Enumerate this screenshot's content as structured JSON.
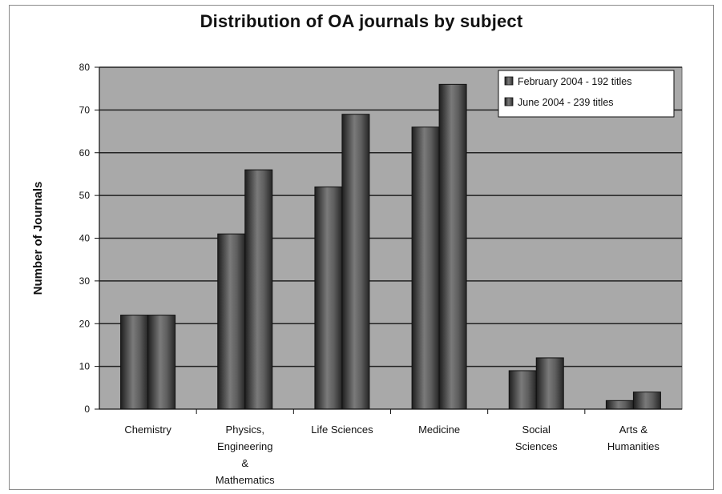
{
  "chart_data": {
    "type": "bar",
    "title": "Distribution of OA journals by subject",
    "xlabel": "",
    "ylabel": "Number of Journals",
    "ylim": [
      0,
      80
    ],
    "yticks": [
      0,
      10,
      20,
      30,
      40,
      50,
      60,
      70,
      80
    ],
    "grid": true,
    "legend_position": "top-right",
    "categories": [
      [
        "Chemistry"
      ],
      [
        "Physics,",
        "Engineering",
        "&",
        "Mathematics"
      ],
      [
        "Life Sciences"
      ],
      [
        "Medicine"
      ],
      [
        "Social",
        "Sciences"
      ],
      [
        "Arts &",
        "Humanities"
      ]
    ],
    "series": [
      {
        "name": "February 2004 - 192 titles",
        "values": [
          22,
          41,
          52,
          66,
          9,
          2
        ]
      },
      {
        "name": "June 2004 - 239 titles",
        "values": [
          22,
          56,
          69,
          76,
          12,
          4
        ]
      }
    ],
    "colors": {
      "plot_background": "#a9a9a9",
      "gridline": "#222222",
      "bar_dark": "#2b2b2b",
      "bar_light": "#8c8c8c"
    }
  }
}
